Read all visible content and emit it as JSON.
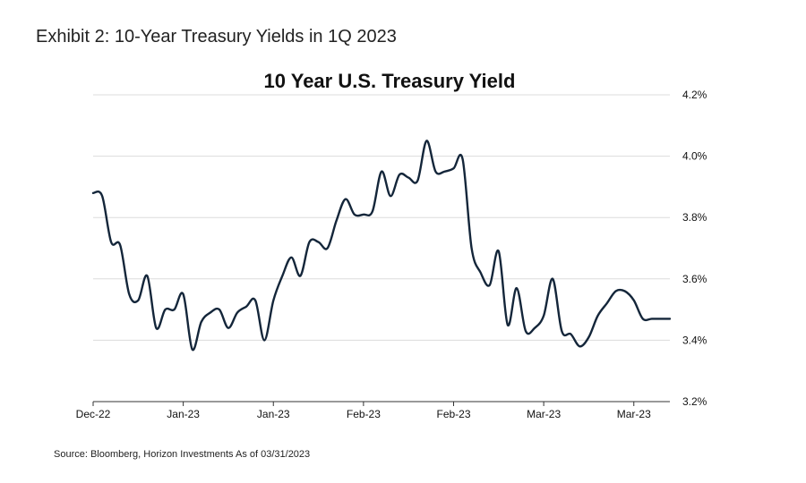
{
  "exhibit_title": "Exhibit 2: 10-Year Treasury Yields in 1Q 2023",
  "source_note": "Source: Bloomberg, Horizon Investments  As of 03/31/2023",
  "colors": {
    "line": "#14263a",
    "grid": "#dcdcdc",
    "axis": "#333333"
  },
  "chart_data": {
    "type": "line",
    "title": "10 Year U.S. Treasury Yield",
    "xlabel": "",
    "ylabel": "",
    "ylim": [
      3.2,
      4.2
    ],
    "y_ticks": [
      3.2,
      3.4,
      3.6,
      3.8,
      4.0,
      4.2
    ],
    "y_tick_labels": [
      "3.2%",
      "3.4%",
      "3.6%",
      "3.8%",
      "4.0%",
      "4.2%"
    ],
    "x_tick_labels": [
      "Dec-22",
      "Jan-23",
      "Jan-23",
      "Feb-23",
      "Feb-23",
      "Mar-23",
      "Mar-23"
    ],
    "x_range": [
      0,
      64
    ],
    "x_ticks": [
      0,
      10,
      20,
      30,
      40,
      50,
      60
    ],
    "grid": true,
    "series": [
      {
        "x": [
          0,
          1,
          2,
          3,
          4,
          5,
          6,
          7,
          8,
          9,
          10,
          11,
          12,
          13,
          14,
          15,
          16,
          17,
          18,
          19,
          20,
          21,
          22,
          23,
          24,
          25,
          26,
          27,
          28,
          29,
          30,
          31,
          32,
          33,
          34,
          35,
          36,
          37,
          38,
          39,
          40,
          41,
          42,
          43,
          44,
          45,
          46,
          47,
          48,
          49,
          50,
          51,
          52,
          53,
          54,
          55,
          56,
          57,
          58,
          59,
          60,
          61,
          62,
          63,
          64
        ],
        "values": [
          3.88,
          3.87,
          3.72,
          3.71,
          3.55,
          3.53,
          3.61,
          3.44,
          3.5,
          3.5,
          3.55,
          3.37,
          3.46,
          3.49,
          3.5,
          3.44,
          3.49,
          3.51,
          3.53,
          3.4,
          3.53,
          3.61,
          3.67,
          3.61,
          3.72,
          3.72,
          3.7,
          3.79,
          3.86,
          3.81,
          3.81,
          3.82,
          3.95,
          3.87,
          3.94,
          3.93,
          3.92,
          4.05,
          3.95,
          3.95,
          3.96,
          3.99,
          3.7,
          3.62,
          3.58,
          3.69,
          3.45,
          3.57,
          3.43,
          3.44,
          3.48,
          3.6,
          3.43,
          3.42,
          3.38,
          3.41,
          3.48,
          3.52,
          3.56,
          3.56,
          3.53,
          3.47,
          3.47,
          3.47,
          3.47
        ]
      }
    ]
  }
}
